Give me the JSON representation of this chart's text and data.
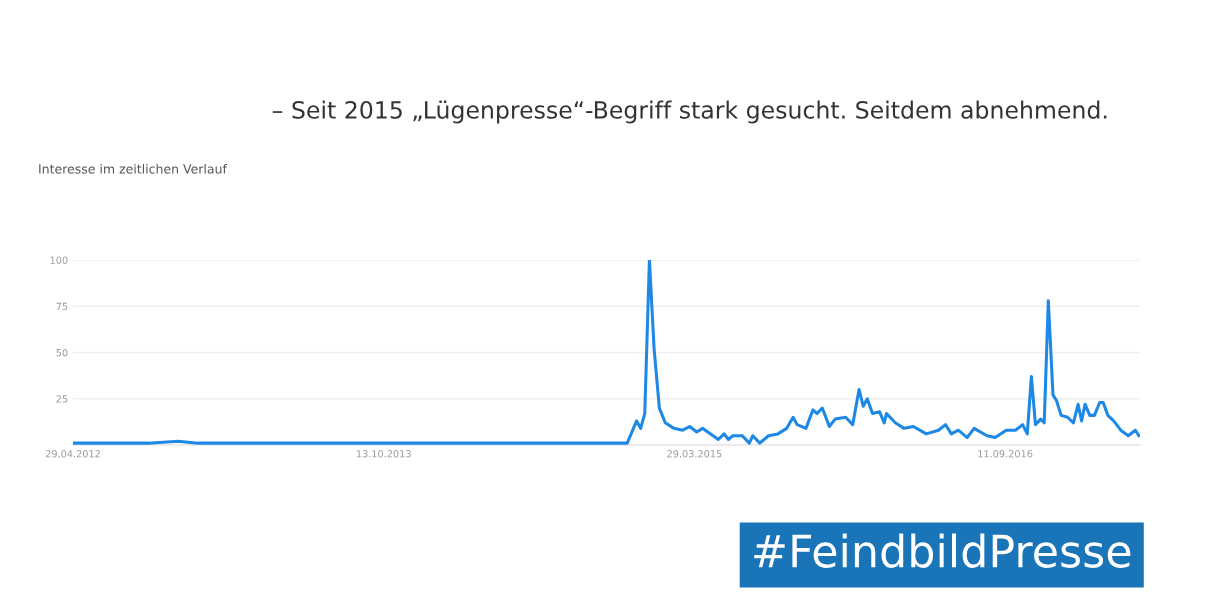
{
  "chart_data": {
    "type": "line",
    "title": "– Seit 2015 „Lügenpresse“-Begriff stark gesucht. Seitdem abnehmend.",
    "subtitle": "Interesse im zeitlichen Verlauf",
    "annotations": [
      "#FeindbildPresse"
    ],
    "x": [
      "2012-04-29",
      "2012-06-02",
      "2012-07-15",
      "2012-09-05",
      "2012-10-26",
      "2012-11-29",
      "2013-02-23",
      "2013-05-20",
      "2013-07-27",
      "2013-10-04",
      "2013-12-12",
      "2014-03-25",
      "2014-07-05",
      "2014-10-16",
      "2014-12-04",
      "2014-12-20",
      "2014-12-27",
      "2015-01-03",
      "2015-01-11",
      "2015-01-19",
      "2015-01-28",
      "2015-02-07",
      "2015-02-22",
      "2015-03-09",
      "2015-03-21",
      "2015-04-02",
      "2015-04-12",
      "2015-05-09",
      "2015-05-19",
      "2015-05-26",
      "2015-06-03",
      "2015-06-19",
      "2015-07-01",
      "2015-07-07",
      "2015-07-19",
      "2015-08-03",
      "2015-08-19",
      "2015-09-03",
      "2015-09-14",
      "2015-09-21",
      "2015-10-06",
      "2015-10-18",
      "2015-10-25",
      "2015-11-03",
      "2015-11-15",
      "2015-11-25",
      "2015-12-13",
      "2015-12-25",
      "2016-01-05",
      "2016-01-12",
      "2016-01-19",
      "2016-01-28",
      "2016-02-09",
      "2016-02-17",
      "2016-02-21",
      "2016-03-07",
      "2016-03-22",
      "2016-04-07",
      "2016-04-29",
      "2016-05-20",
      "2016-06-01",
      "2016-06-11",
      "2016-06-23",
      "2016-07-08",
      "2016-07-20",
      "2016-08-11",
      "2016-08-25",
      "2016-09-13",
      "2016-09-29",
      "2016-10-11",
      "2016-10-19",
      "2016-10-26",
      "2016-11-02",
      "2016-11-11",
      "2016-11-17",
      "2016-11-24",
      "2016-12-02",
      "2016-12-08",
      "2016-12-16",
      "2016-12-27",
      "2017-01-06",
      "2017-01-14",
      "2017-01-20",
      "2017-01-26",
      "2017-02-03",
      "2017-02-11",
      "2017-02-20",
      "2017-02-26",
      "2017-03-06",
      "2017-03-16",
      "2017-03-28",
      "2017-04-10",
      "2017-04-22",
      "2017-04-28"
    ],
    "series": [
      {
        "color": "#1e88e5",
        "values": [
          1,
          1,
          1,
          1,
          2,
          1,
          1,
          1,
          1,
          1,
          1,
          1,
          1,
          1,
          1,
          13,
          9,
          17,
          100,
          52,
          20,
          12,
          9,
          8,
          10,
          7,
          9,
          3,
          6,
          3,
          5,
          5,
          1,
          5,
          1,
          5,
          6,
          9,
          15,
          11,
          9,
          19,
          17,
          20,
          10,
          14,
          15,
          11,
          30,
          21,
          25,
          17,
          18,
          12,
          17,
          12,
          9,
          10,
          6,
          8,
          11,
          6,
          8,
          4,
          9,
          5,
          4,
          8,
          8,
          11,
          6,
          37,
          11,
          14,
          12,
          78,
          27,
          24,
          16,
          15,
          12,
          22,
          13,
          22,
          16,
          16,
          23,
          23,
          16,
          13,
          8,
          5,
          8,
          5
        ]
      }
    ],
    "xlim": [
      "2012-04-29",
      "2017-04-30"
    ],
    "xticks": [
      {
        "value": "2012-04-29",
        "label": "29.04.2012"
      },
      {
        "value": "2013-10-13",
        "label": "13.10.2013"
      },
      {
        "value": "2015-03-29",
        "label": "29.03.2015"
      },
      {
        "value": "2016-09-11",
        "label": "11.09.2016"
      }
    ],
    "ylim": [
      0,
      100
    ],
    "yticks": [
      {
        "value": 0,
        "label": null
      },
      25,
      50,
      75,
      100
    ],
    "grid": "y",
    "marker": "none",
    "line_style": "solid"
  }
}
